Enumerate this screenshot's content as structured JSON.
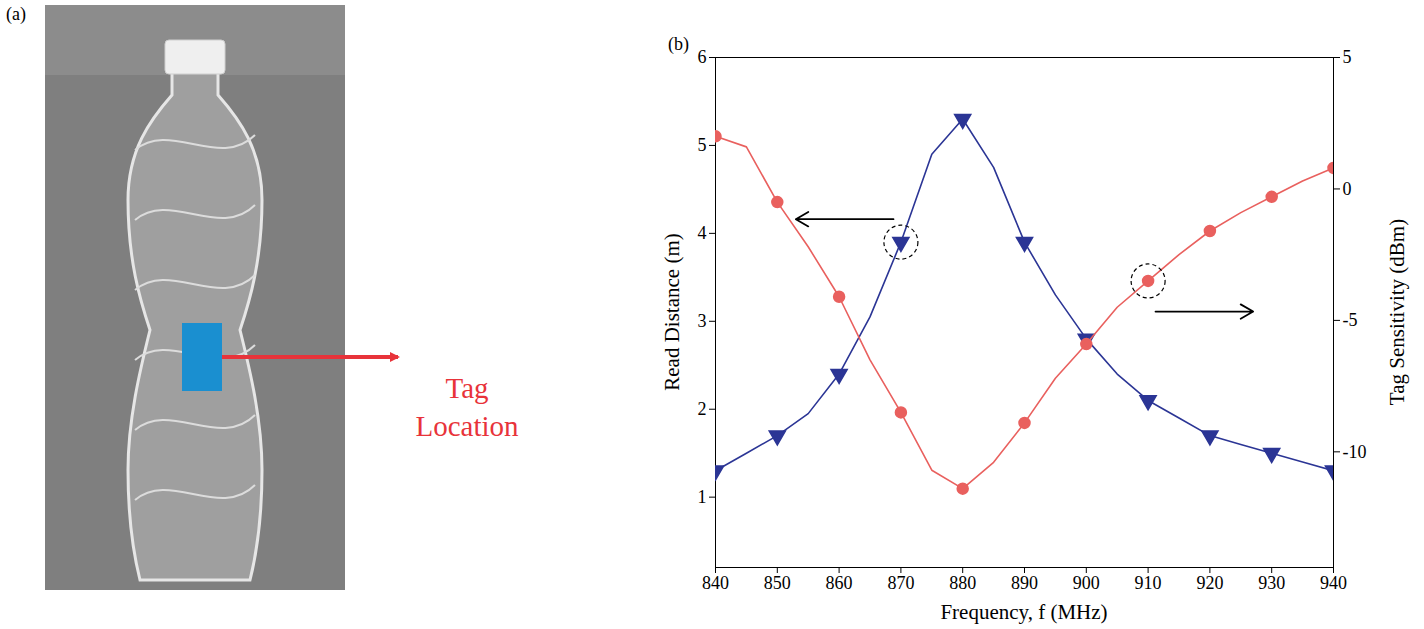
{
  "panel_a": {
    "label": "(a)",
    "annotation": "Tag Location"
  },
  "chart_data": {
    "type": "line",
    "panel_label": "(b)",
    "x_label": "Frequency, f (MHz)",
    "y_label": "Read Distance (m)",
    "y2_label": "Tag Sensitivity (dBm)",
    "x": [
      840,
      845,
      850,
      855,
      860,
      865,
      870,
      875,
      880,
      885,
      890,
      895,
      900,
      905,
      910,
      915,
      920,
      925,
      930,
      935,
      940
    ],
    "xlim": [
      840,
      940
    ],
    "xticks": [
      840,
      850,
      860,
      870,
      880,
      890,
      900,
      910,
      920,
      930,
      940
    ],
    "ylim": [
      0.2,
      6
    ],
    "yticks": [
      1,
      2,
      3,
      4,
      5,
      6
    ],
    "y2lim": [
      -14.4,
      5
    ],
    "y2ticks": [
      -10,
      -5,
      0,
      5
    ],
    "grid": false,
    "series": [
      {
        "color": "#2b3595",
        "marker": "triangle-down",
        "values": [
          1.3,
          1.5,
          1.7,
          1.95,
          2.4,
          3.05,
          3.9,
          4.9,
          5.3,
          4.75,
          3.9,
          3.3,
          2.8,
          2.4,
          2.1,
          1.9,
          1.7,
          1.6,
          1.5,
          1.4,
          1.3
        ]
      },
      {
        "color": "#e9605e",
        "marker": "circle",
        "axis": "y2",
        "values": [
          2.0,
          1.6,
          -0.5,
          -2.2,
          -4.1,
          -6.5,
          -8.5,
          -10.7,
          -11.4,
          -10.4,
          -8.9,
          -7.2,
          -5.9,
          -4.5,
          -3.5,
          -2.5,
          -1.6,
          -0.9,
          -0.3,
          0.3,
          0.8
        ]
      }
    ]
  }
}
